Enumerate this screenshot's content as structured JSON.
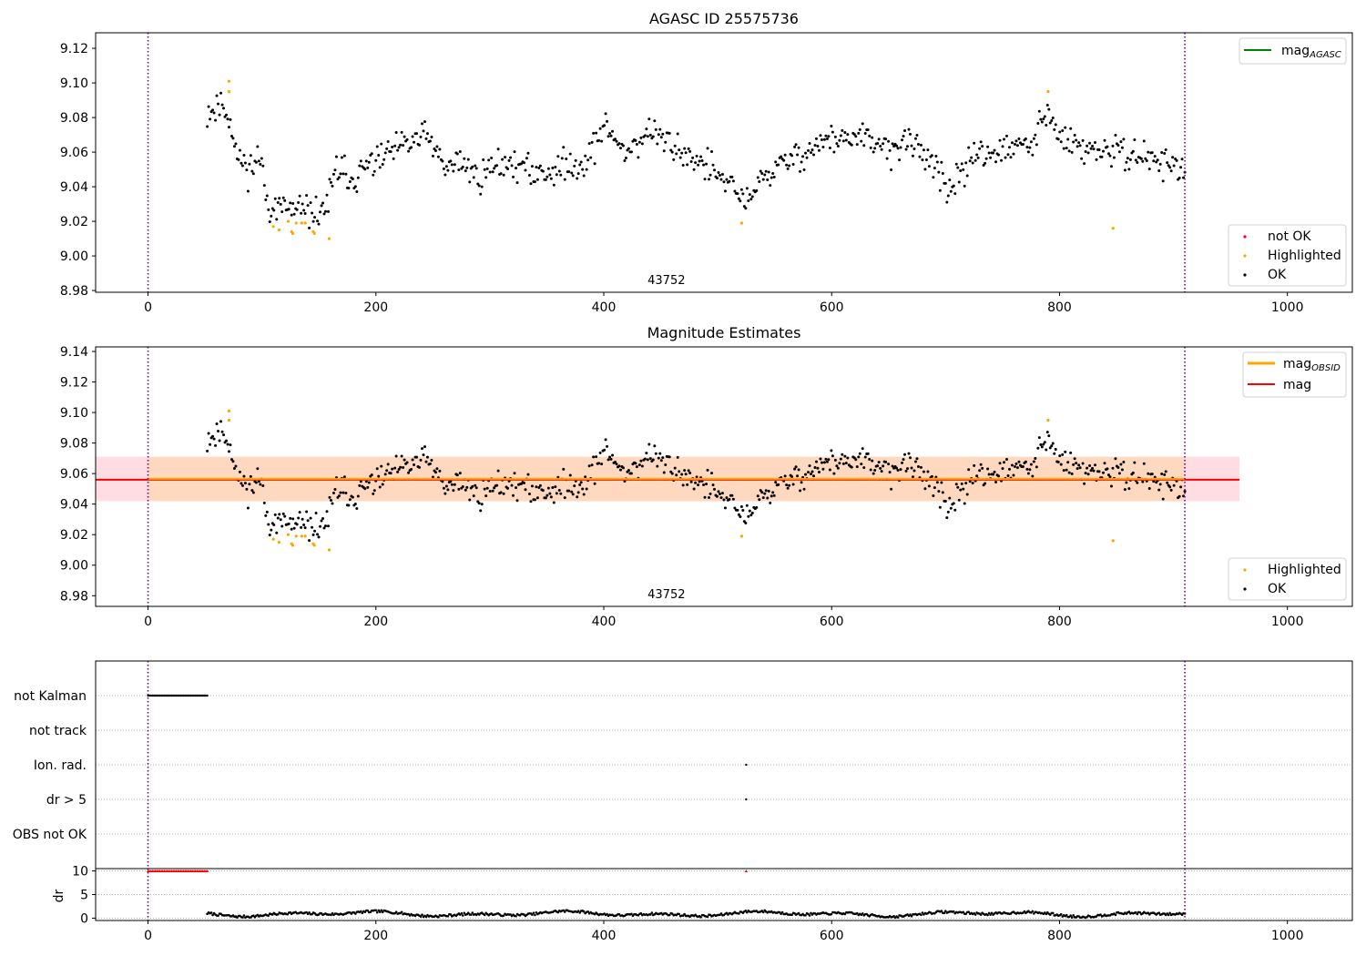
{
  "chart_data": [
    {
      "id": "p1",
      "type": "scatter",
      "title": "AGASC ID 25575736",
      "xlabel": "",
      "ylabel": "",
      "xlim": [
        -46,
        1057
      ],
      "ylim": [
        8.979,
        9.129
      ],
      "xticks": [
        0,
        200,
        400,
        600,
        800,
        1000
      ],
      "yticks": [
        8.98,
        9.0,
        9.02,
        9.04,
        9.06,
        9.08,
        9.1,
        9.12
      ],
      "ytick_decimals": 2,
      "vlines": [
        0,
        910
      ],
      "obsid_label": {
        "text": "43752",
        "x": 455
      },
      "line_legend": [
        {
          "label": "mag",
          "sub": "AGASC",
          "color": "#008000",
          "thick": false
        }
      ],
      "point_legend": [
        {
          "label": "not OK",
          "color": "#ff0000"
        },
        {
          "label": "Highlighted",
          "color": "#ffa500"
        },
        {
          "label": "OK",
          "color": "#000000"
        }
      ],
      "highlighted": [
        [
          71,
          9.101
        ],
        [
          71,
          9.095
        ],
        [
          110,
          9.017
        ],
        [
          115,
          9.015
        ],
        [
          123,
          9.02
        ],
        [
          126,
          9.014
        ],
        [
          127,
          9.013
        ],
        [
          130,
          9.019
        ],
        [
          135,
          9.019
        ],
        [
          138,
          9.019
        ],
        [
          145,
          9.014
        ],
        [
          146,
          9.013
        ],
        [
          159,
          9.01
        ],
        [
          521,
          9.019
        ],
        [
          790,
          9.095
        ],
        [
          847,
          9.016
        ]
      ],
      "ok_anchors": [
        [
          52,
          9.083
        ],
        [
          65,
          9.088
        ],
        [
          72,
          9.08
        ],
        [
          78,
          9.057
        ],
        [
          90,
          9.05
        ],
        [
          98,
          9.058
        ],
        [
          105,
          9.03
        ],
        [
          120,
          9.027
        ],
        [
          140,
          9.025
        ],
        [
          150,
          9.025
        ],
        [
          158,
          9.03
        ],
        [
          165,
          9.05
        ],
        [
          180,
          9.045
        ],
        [
          200,
          9.055
        ],
        [
          230,
          9.065
        ],
        [
          245,
          9.07
        ],
        [
          260,
          9.05
        ],
        [
          275,
          9.055
        ],
        [
          290,
          9.045
        ],
        [
          310,
          9.055
        ],
        [
          340,
          9.048
        ],
        [
          360,
          9.05
        ],
        [
          385,
          9.055
        ],
        [
          400,
          9.075
        ],
        [
          420,
          9.06
        ],
        [
          440,
          9.072
        ],
        [
          470,
          9.06
        ],
        [
          495,
          9.05
        ],
        [
          510,
          9.04
        ],
        [
          523,
          9.032
        ],
        [
          540,
          9.045
        ],
        [
          555,
          9.052
        ],
        [
          570,
          9.058
        ],
        [
          600,
          9.068
        ],
        [
          630,
          9.067
        ],
        [
          650,
          9.062
        ],
        [
          670,
          9.065
        ],
        [
          690,
          9.055
        ],
        [
          702,
          9.033
        ],
        [
          712,
          9.045
        ],
        [
          725,
          9.06
        ],
        [
          750,
          9.06
        ],
        [
          775,
          9.065
        ],
        [
          790,
          9.082
        ],
        [
          800,
          9.068
        ],
        [
          820,
          9.062
        ],
        [
          850,
          9.06
        ],
        [
          880,
          9.057
        ],
        [
          908,
          9.05
        ]
      ],
      "ok_range": [
        52,
        910
      ],
      "ok_n": 720,
      "ok_noise": 0.0075,
      "ok_seed": 11
    },
    {
      "id": "p2",
      "type": "scatter",
      "title": "Magnitude Estimates",
      "xlabel": "",
      "ylabel": "",
      "xlim": [
        -46,
        1057
      ],
      "ylim": [
        8.973,
        9.143
      ],
      "xticks": [
        0,
        200,
        400,
        600,
        800,
        1000
      ],
      "yticks": [
        8.98,
        9.0,
        9.02,
        9.04,
        9.06,
        9.08,
        9.1,
        9.12,
        9.14
      ],
      "ytick_decimals": 2,
      "vlines": [
        0,
        910
      ],
      "obsid_label": {
        "text": "43752",
        "x": 455
      },
      "band_wide": {
        "x0": -46,
        "x1": 958,
        "y0": 9.042,
        "y1": 9.071,
        "color": "#ffdde3"
      },
      "band_obs": {
        "x0": 0,
        "x1": 910,
        "y0": 9.042,
        "y1": 9.071,
        "color": "#ffd8c0"
      },
      "mag_obsid_line": {
        "x0": 0,
        "x1": 910,
        "y": 9.0565,
        "color": "#ffa500"
      },
      "mag_line": {
        "x0": -46,
        "x1": 958,
        "y": 9.056,
        "color": "#ff0000"
      },
      "line_legend": [
        {
          "label": "mag",
          "sub": "OBSID",
          "color": "#ffa500",
          "thick": true
        },
        {
          "label": "mag",
          "sub": "",
          "color": "#ff0000",
          "thick": false
        }
      ],
      "point_legend": [
        {
          "label": "Highlighted",
          "color": "#ffa500"
        },
        {
          "label": "OK",
          "color": "#000000"
        }
      ],
      "same_points_as": "p1"
    },
    {
      "id": "p3",
      "type": "scatter",
      "xlim": [
        -46,
        1057
      ],
      "categories": [
        "not Kalman",
        "not track",
        "Ion. rad.",
        "dr > 5",
        "OBS not OK"
      ],
      "flag_points": {
        "not Kalman": [
          [
            0,
            52
          ]
        ],
        "Ion. rad.": [
          [
            525,
            525
          ]
        ],
        "dr > 5": [
          [
            525,
            525
          ]
        ]
      },
      "vlines": [
        0,
        910
      ]
    },
    {
      "id": "p4",
      "type": "scatter",
      "xlabel": "",
      "ylabel": "dr",
      "xlim": [
        -46,
        1057
      ],
      "ylim": [
        -0.5,
        10.5
      ],
      "xticks": [
        0,
        200,
        400,
        600,
        800,
        1000
      ],
      "yticks": [
        0,
        5,
        10
      ],
      "ytick_decimals": 0,
      "vlines": [
        0,
        910
      ],
      "capped": {
        "x_range": [
          0,
          52
        ],
        "x_extra": [
          525
        ],
        "y": 10
      },
      "dr_range": [
        52,
        910
      ],
      "dr_mean": 0.9,
      "dr_amp": 0.6
    }
  ]
}
